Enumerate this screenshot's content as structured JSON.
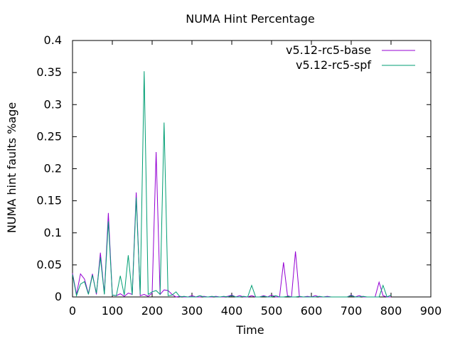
{
  "chart_data": {
    "type": "line",
    "title": "NUMA Hint Percentage",
    "xlabel": "Time",
    "ylabel": "NUMA hint faults %age",
    "xlim": [
      0,
      900
    ],
    "ylim": [
      0,
      0.4
    ],
    "xticks": [
      0,
      100,
      200,
      300,
      400,
      500,
      600,
      700,
      800,
      900
    ],
    "yticks": [
      0,
      0.05,
      0.1,
      0.15,
      0.2,
      0.25,
      0.3,
      0.35,
      0.4
    ],
    "xtick_labels": [
      "0",
      "100",
      "200",
      "300",
      "400",
      "500",
      "600",
      "700",
      "800",
      "900"
    ],
    "ytick_labels": [
      "0",
      "0.05",
      "0.1",
      "0.15",
      "0.2",
      "0.25",
      "0.3",
      "0.35",
      "0.4"
    ],
    "grid": false,
    "legend_position": "top-right",
    "series": [
      {
        "name": "v5.12-rc5-base",
        "color": "#9400d3",
        "x": [
          0,
          10,
          20,
          30,
          40,
          50,
          60,
          70,
          80,
          90,
          100,
          110,
          120,
          130,
          140,
          150,
          160,
          170,
          180,
          190,
          200,
          210,
          220,
          230,
          240,
          250,
          260,
          270,
          280,
          290,
          300,
          310,
          320,
          330,
          340,
          350,
          360,
          370,
          380,
          390,
          400,
          410,
          420,
          430,
          440,
          450,
          460,
          470,
          480,
          490,
          500,
          510,
          520,
          530,
          540,
          550,
          560,
          570,
          580,
          590,
          600,
          610,
          620,
          630,
          640,
          650,
          660,
          670,
          680,
          690,
          700,
          710,
          720,
          730,
          740,
          750,
          760,
          770,
          780,
          790,
          800
        ],
        "y": [
          0.037,
          0.004,
          0.036,
          0.028,
          0.005,
          0.036,
          0.004,
          0.069,
          0.005,
          0.131,
          0.003,
          0.002,
          0.005,
          0.001,
          0.006,
          0.004,
          0.163,
          0.002,
          0.004,
          0.001,
          0.006,
          0.226,
          0.004,
          0.011,
          0.01,
          0.004,
          0.0,
          0.001,
          0.0,
          0.0,
          0.002,
          0.0,
          0.0,
          0.001,
          0.0,
          0.0,
          0.001,
          0.0,
          0.0,
          0.001,
          0.003,
          0.0,
          0.002,
          0.0,
          0.0,
          0.002,
          0.0,
          0.0,
          0.002,
          0.0,
          0.003,
          0.0,
          0.0,
          0.054,
          0.002,
          0.0,
          0.071,
          0.0,
          0.0,
          0.001,
          0.0,
          0.002,
          0.0,
          0.0,
          0.001,
          0.0,
          0.0,
          0.0,
          0.0,
          0.0,
          0.003,
          0.0,
          0.002,
          0.0,
          0.0,
          0.0,
          0.0,
          0.023,
          0.002,
          0.0,
          0.0
        ]
      },
      {
        "name": "v5.12-rc5-spf",
        "color": "#009e73",
        "x": [
          0,
          10,
          20,
          30,
          40,
          50,
          60,
          70,
          80,
          90,
          100,
          110,
          120,
          130,
          140,
          150,
          160,
          170,
          180,
          190,
          200,
          210,
          220,
          230,
          240,
          250,
          260,
          270,
          280,
          290,
          300,
          310,
          320,
          330,
          340,
          350,
          360,
          370,
          380,
          390,
          400,
          410,
          420,
          430,
          440,
          450,
          460,
          470,
          480,
          490,
          500,
          510,
          520,
          530,
          540,
          550,
          560,
          570,
          580,
          590,
          600,
          610,
          620,
          630,
          640,
          650,
          660,
          670,
          680,
          690,
          700,
          710,
          720,
          730,
          740,
          750,
          760,
          770,
          780,
          790,
          800
        ],
        "y": [
          0.035,
          0.002,
          0.02,
          0.024,
          0.004,
          0.034,
          0.006,
          0.062,
          0.004,
          0.118,
          0.003,
          0.002,
          0.033,
          0.003,
          0.065,
          0.003,
          0.155,
          0.004,
          0.352,
          0.004,
          0.008,
          0.01,
          0.004,
          0.272,
          0.002,
          0.003,
          0.008,
          0.0,
          0.001,
          0.0,
          0.0,
          0.0,
          0.002,
          0.0,
          0.0,
          0.001,
          0.0,
          0.0,
          0.001,
          0.0,
          0.002,
          0.0,
          0.0,
          0.001,
          0.0,
          0.018,
          0.0,
          0.0,
          0.001,
          0.0,
          0.0,
          0.002,
          0.0,
          0.0,
          0.001,
          0.0,
          0.0,
          0.001,
          0.0,
          0.0,
          0.0,
          0.0,
          0.001,
          0.0,
          0.0,
          0.0,
          0.0,
          0.0,
          0.0,
          0.0,
          0.002,
          0.0,
          0.0,
          0.001,
          0.0,
          0.0,
          0.0,
          0.0,
          0.018,
          0.0,
          0.003
        ]
      }
    ]
  }
}
